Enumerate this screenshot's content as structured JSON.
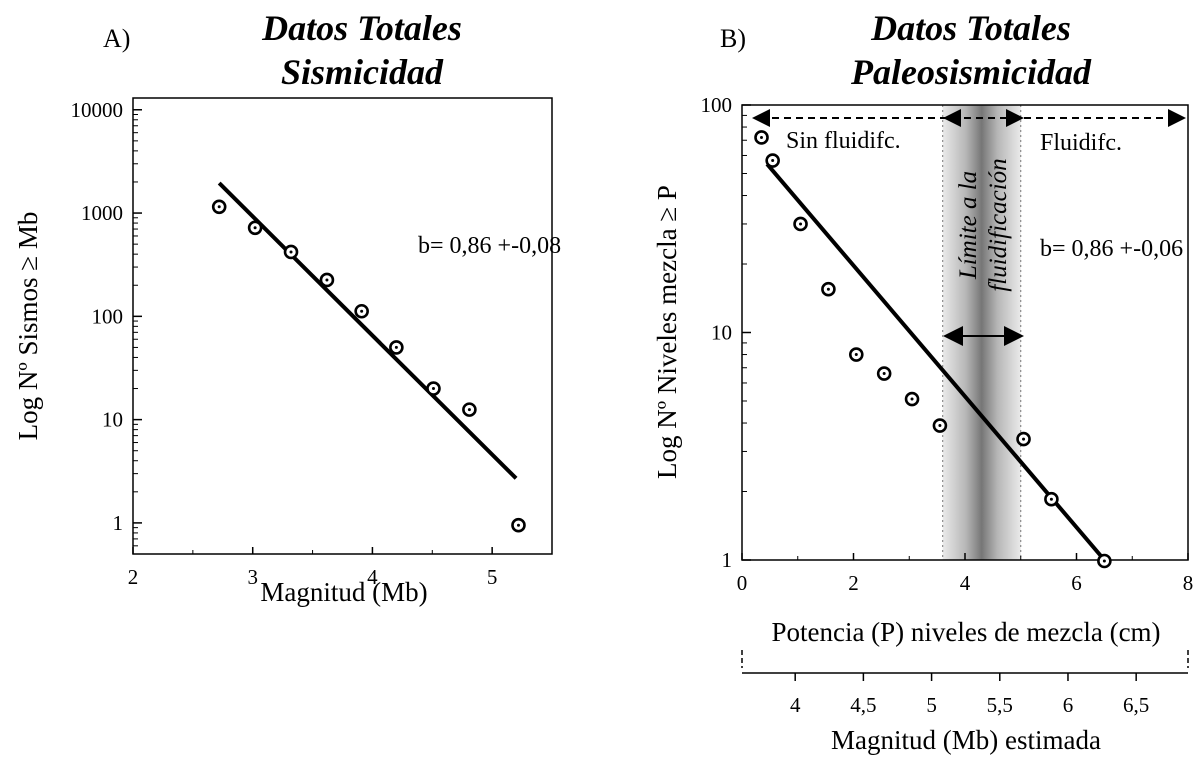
{
  "chart_data": [
    {
      "id": "A",
      "type": "scatter",
      "panel_label": "A)",
      "title": [
        "Datos Totales",
        "Sismicidad"
      ],
      "xlabel": "Magnitud (Mb)",
      "ylabel": "Log Nº Sismos ≥ Mb",
      "xlim": [
        2,
        5.5
      ],
      "ylim": [
        0.5,
        13000
      ],
      "yscale": "log",
      "xticks": [
        {
          "v": 2,
          "label": "2"
        },
        {
          "v": 3,
          "label": "3"
        },
        {
          "v": 4,
          "label": "4"
        },
        {
          "v": 5,
          "label": "5"
        }
      ],
      "yticks": [
        {
          "v": 1,
          "label": "1"
        },
        {
          "v": 10,
          "label": "10"
        },
        {
          "v": 100,
          "label": "100"
        },
        {
          "v": 1000,
          "label": "1000"
        },
        {
          "v": 10000,
          "label": "10000"
        }
      ],
      "points": [
        {
          "x": 2.72,
          "y": 1150
        },
        {
          "x": 3.02,
          "y": 720
        },
        {
          "x": 3.32,
          "y": 420
        },
        {
          "x": 3.62,
          "y": 225
        },
        {
          "x": 3.91,
          "y": 112
        },
        {
          "x": 4.2,
          "y": 50
        },
        {
          "x": 4.51,
          "y": 20
        },
        {
          "x": 4.81,
          "y": 12.5
        },
        {
          "x": 5.22,
          "y": 0.95
        }
      ],
      "fit_line": {
        "x": [
          2.72,
          5.2
        ],
        "y": [
          1950,
          2.7
        ]
      },
      "annotation": "b= 0,86 +-0,08"
    },
    {
      "id": "B",
      "type": "scatter",
      "panel_label": "B)",
      "title": [
        "Datos Totales",
        "Paleosismicidad"
      ],
      "xlabel": "Potencia (P) niveles de mezcla (cm)",
      "ylabel": "Log Nº Niveles mezcla ≥ P",
      "xlim": [
        0,
        8
      ],
      "ylim": [
        1,
        100
      ],
      "yscale": "log",
      "xticks": [
        {
          "v": 0,
          "label": "0"
        },
        {
          "v": 2,
          "label": "2"
        },
        {
          "v": 4,
          "label": "4"
        },
        {
          "v": 6,
          "label": "6"
        },
        {
          "v": 8,
          "label": "8"
        }
      ],
      "yticks": [
        {
          "v": 1,
          "label": "1"
        },
        {
          "v": 10,
          "label": "10"
        },
        {
          "v": 100,
          "label": "100"
        }
      ],
      "points": [
        {
          "x": 0.35,
          "y": 72
        },
        {
          "x": 0.55,
          "y": 57
        },
        {
          "x": 1.05,
          "y": 30
        },
        {
          "x": 1.55,
          "y": 15.5
        },
        {
          "x": 2.05,
          "y": 8
        },
        {
          "x": 2.55,
          "y": 6.6
        },
        {
          "x": 3.05,
          "y": 5.1
        },
        {
          "x": 3.55,
          "y": 3.9
        },
        {
          "x": 5.05,
          "y": 3.4
        },
        {
          "x": 5.55,
          "y": 1.85
        },
        {
          "x": 6.5,
          "y": 0.99
        }
      ],
      "fit_line": {
        "x": [
          0.45,
          6.5
        ],
        "y": [
          55,
          1.0
        ]
      },
      "annotation": "b= 0,86 +-0,06",
      "region_labels": {
        "left": "Sin fluidifc.",
        "right": "Fluidifc.",
        "band": [
          "Límite a la",
          "fluidificación"
        ]
      },
      "band_x": [
        3.6,
        5.0
      ],
      "secondary_xaxis": {
        "label": "Magnitud (Mb) estimada",
        "ticks": [
          {
            "v": 4,
            "label": "4"
          },
          {
            "v": 4.5,
            "label": "4,5"
          },
          {
            "v": 5,
            "label": "5"
          },
          {
            "v": 5.5,
            "label": "5,5"
          },
          {
            "v": 6,
            "label": "6"
          },
          {
            "v": 6.5,
            "label": "6,5"
          }
        ],
        "range": [
          3.61,
          6.88
        ]
      }
    }
  ]
}
